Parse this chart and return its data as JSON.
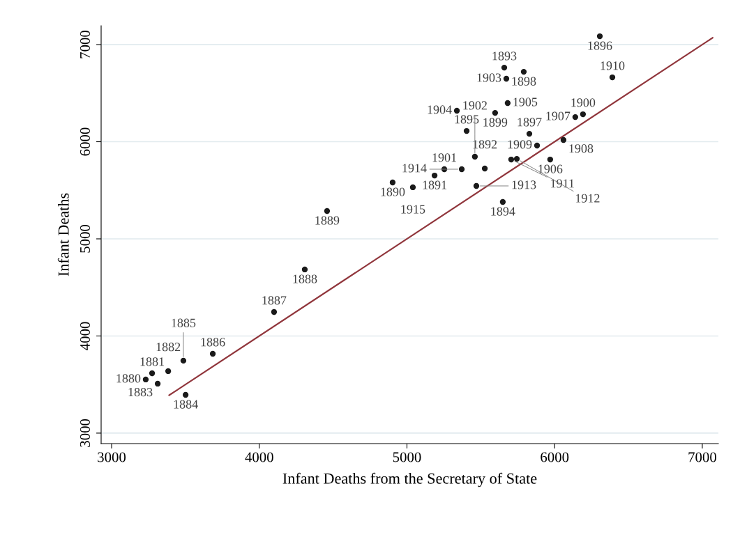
{
  "chart_data": {
    "type": "scatter",
    "xlabel": "Infant Deaths from the Secretary of State",
    "ylabel": "Infant Deaths",
    "xlim": [
      2929,
      7109
    ],
    "ylim": [
      2892,
      7194
    ],
    "xticks": [
      3000,
      4000,
      5000,
      6000,
      7000
    ],
    "yticks": [
      3000,
      4000,
      5000,
      6000,
      7000
    ],
    "grid": "y",
    "legend": false,
    "series": [
      {
        "color": "#1a1a1a",
        "marker": "circle",
        "x": [
          3231,
          3274,
          3383,
          3312,
          3501,
          3486,
          3685,
          4100,
          4308,
          4459,
          4903,
          5187,
          5527,
          5659,
          5649,
          5404,
          6306,
          5829,
          5791,
          5597,
          6192,
          5253,
          5460,
          5673,
          5338,
          5682,
          5970,
          6140,
          6060,
          5881,
          6391,
          5706,
          5744,
          5470,
          5371,
          5040
        ],
        "values": [
          3552,
          3616,
          3638,
          3509,
          3394,
          3746,
          3817,
          4247,
          4685,
          5287,
          5581,
          5652,
          5724,
          6763,
          5380,
          6111,
          7086,
          6082,
          6720,
          6297,
          6283,
          5717,
          5846,
          6649,
          6319,
          6398,
          5817,
          6254,
          6018,
          5961,
          6663,
          5817,
          5824,
          5545,
          5717,
          5531
        ]
      },
      {
        "type": "line",
        "color": "#90353b",
        "x": [
          3390,
          7070
        ],
        "values": [
          3390,
          7070
        ]
      }
    ],
    "annotations": [
      {
        "text": "1880",
        "x": 3231,
        "y": 3552
      },
      {
        "text": "1881",
        "x": 3274,
        "y": 3616
      },
      {
        "text": "1882",
        "x": 3383,
        "y": 3638
      },
      {
        "text": "1883",
        "x": 3312,
        "y": 3509
      },
      {
        "text": "1884",
        "x": 3501,
        "y": 3394
      },
      {
        "text": "1885",
        "x": 3486,
        "y": 3746
      },
      {
        "text": "1886",
        "x": 3685,
        "y": 3817
      },
      {
        "text": "1887",
        "x": 4100,
        "y": 4247
      },
      {
        "text": "1888",
        "x": 4308,
        "y": 4685
      },
      {
        "text": "1889",
        "x": 4459,
        "y": 5287
      },
      {
        "text": "1890",
        "x": 4903,
        "y": 5581
      },
      {
        "text": "1891",
        "x": 5187,
        "y": 5652
      },
      {
        "text": "1892",
        "x": 5527,
        "y": 5724
      },
      {
        "text": "1893",
        "x": 5659,
        "y": 6763
      },
      {
        "text": "1894",
        "x": 5649,
        "y": 5380
      },
      {
        "text": "1895",
        "x": 5404,
        "y": 6111
      },
      {
        "text": "1896",
        "x": 6306,
        "y": 7086
      },
      {
        "text": "1897",
        "x": 5829,
        "y": 6082
      },
      {
        "text": "1898",
        "x": 5791,
        "y": 6720
      },
      {
        "text": "1899",
        "x": 5597,
        "y": 6297
      },
      {
        "text": "1900",
        "x": 6192,
        "y": 6283
      },
      {
        "text": "1901",
        "x": 5253,
        "y": 5717
      },
      {
        "text": "1902",
        "x": 5460,
        "y": 5846
      },
      {
        "text": "1903",
        "x": 5673,
        "y": 6649
      },
      {
        "text": "1904",
        "x": 5338,
        "y": 6319
      },
      {
        "text": "1905",
        "x": 5682,
        "y": 6398
      },
      {
        "text": "1906",
        "x": 5970,
        "y": 5817
      },
      {
        "text": "1907",
        "x": 6140,
        "y": 6254
      },
      {
        "text": "1908",
        "x": 6060,
        "y": 6018
      },
      {
        "text": "1909",
        "x": 5881,
        "y": 5961
      },
      {
        "text": "1910",
        "x": 6391,
        "y": 6663
      },
      {
        "text": "1911",
        "x": 5706,
        "y": 5817
      },
      {
        "text": "1912",
        "x": 5744,
        "y": 5824
      },
      {
        "text": "1913",
        "x": 5470,
        "y": 5545
      },
      {
        "text": "1914",
        "x": 5371,
        "y": 5717
      },
      {
        "text": "1915",
        "x": 5040,
        "y": 5531
      }
    ]
  }
}
